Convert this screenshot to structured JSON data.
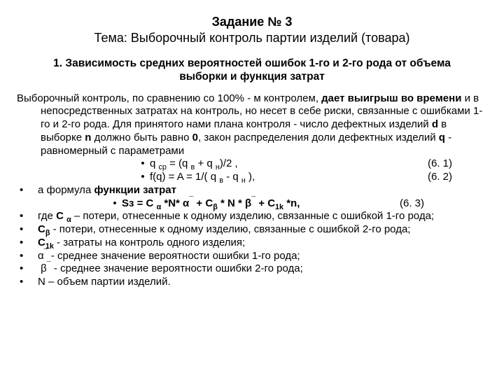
{
  "title_line1": "Задание № 3",
  "title_line2": "Тема: Выборочный контроль партии изделий (товара)",
  "section_heading": "1. Зависимость средних вероятностей ошибок 1-го и 2-го рода от объема выборки и функция затрат",
  "para_lead": "Выборочный контроль, по сравнению со 100% - м контролем, ",
  "para_bold1": "дает выигрыш во времени",
  "para_mid1": " и в непосредственных затратах на контроль, но несет в себе риски, связанные с ошибками 1-го и 2-го рода. Для принятого нами плана контроля - число дефектных изделий ",
  "para_d": "d",
  "para_mid2": " в выборке ",
  "para_n": "n",
  "para_mid3": " должно быть равно ",
  "para_zero": "0",
  "para_mid4": ", закон распределения доли дефектных изделий ",
  "para_q": "q",
  "para_tail": " - равномерный с параметрами",
  "eq1_text": "q ср = (q в + q н)/2 ,",
  "eq1_num": "(6. 1)",
  "eq2_text": "f(q) = A = 1/( q в - q н ),",
  "eq2_num": "(6. 2)",
  "func_line": "а формула ",
  "func_bold": "функции затрат",
  "eq3_lead": "Sз = C α *N* α¯ + Cβ * N * β¯  + C1k *n,",
  "eq3_num": "(6. 3)",
  "li1_a": "где ",
  "li1_b": "C α",
  "li1_c": " – потери, отнесенные к одному изделию, связанные с ошибкой 1-го рода;",
  "li2_a": "Cβ",
  "li2_b": "  -  потери, отнесенные к одному изделию, связанные с ошибкой 2-го рода;",
  "li3_a": "C1k",
  "li3_b": "  - затраты на контроль одного изделия;",
  "li4_a": "α¯",
  "li4_b": " -  среднее значение вероятности ошибки 1-го рода;",
  "li5_a": " β¯",
  "li5_b": " - среднее значение вероятности ошибки 2-го рода;",
  "li6_a": "N",
  "li6_b": " – объем партии изделий.",
  "colors": {
    "text": "#000000",
    "background": "#ffffff"
  },
  "typography": {
    "title_size_pt": 14,
    "body_size_pt": 11,
    "family": "Arial"
  }
}
